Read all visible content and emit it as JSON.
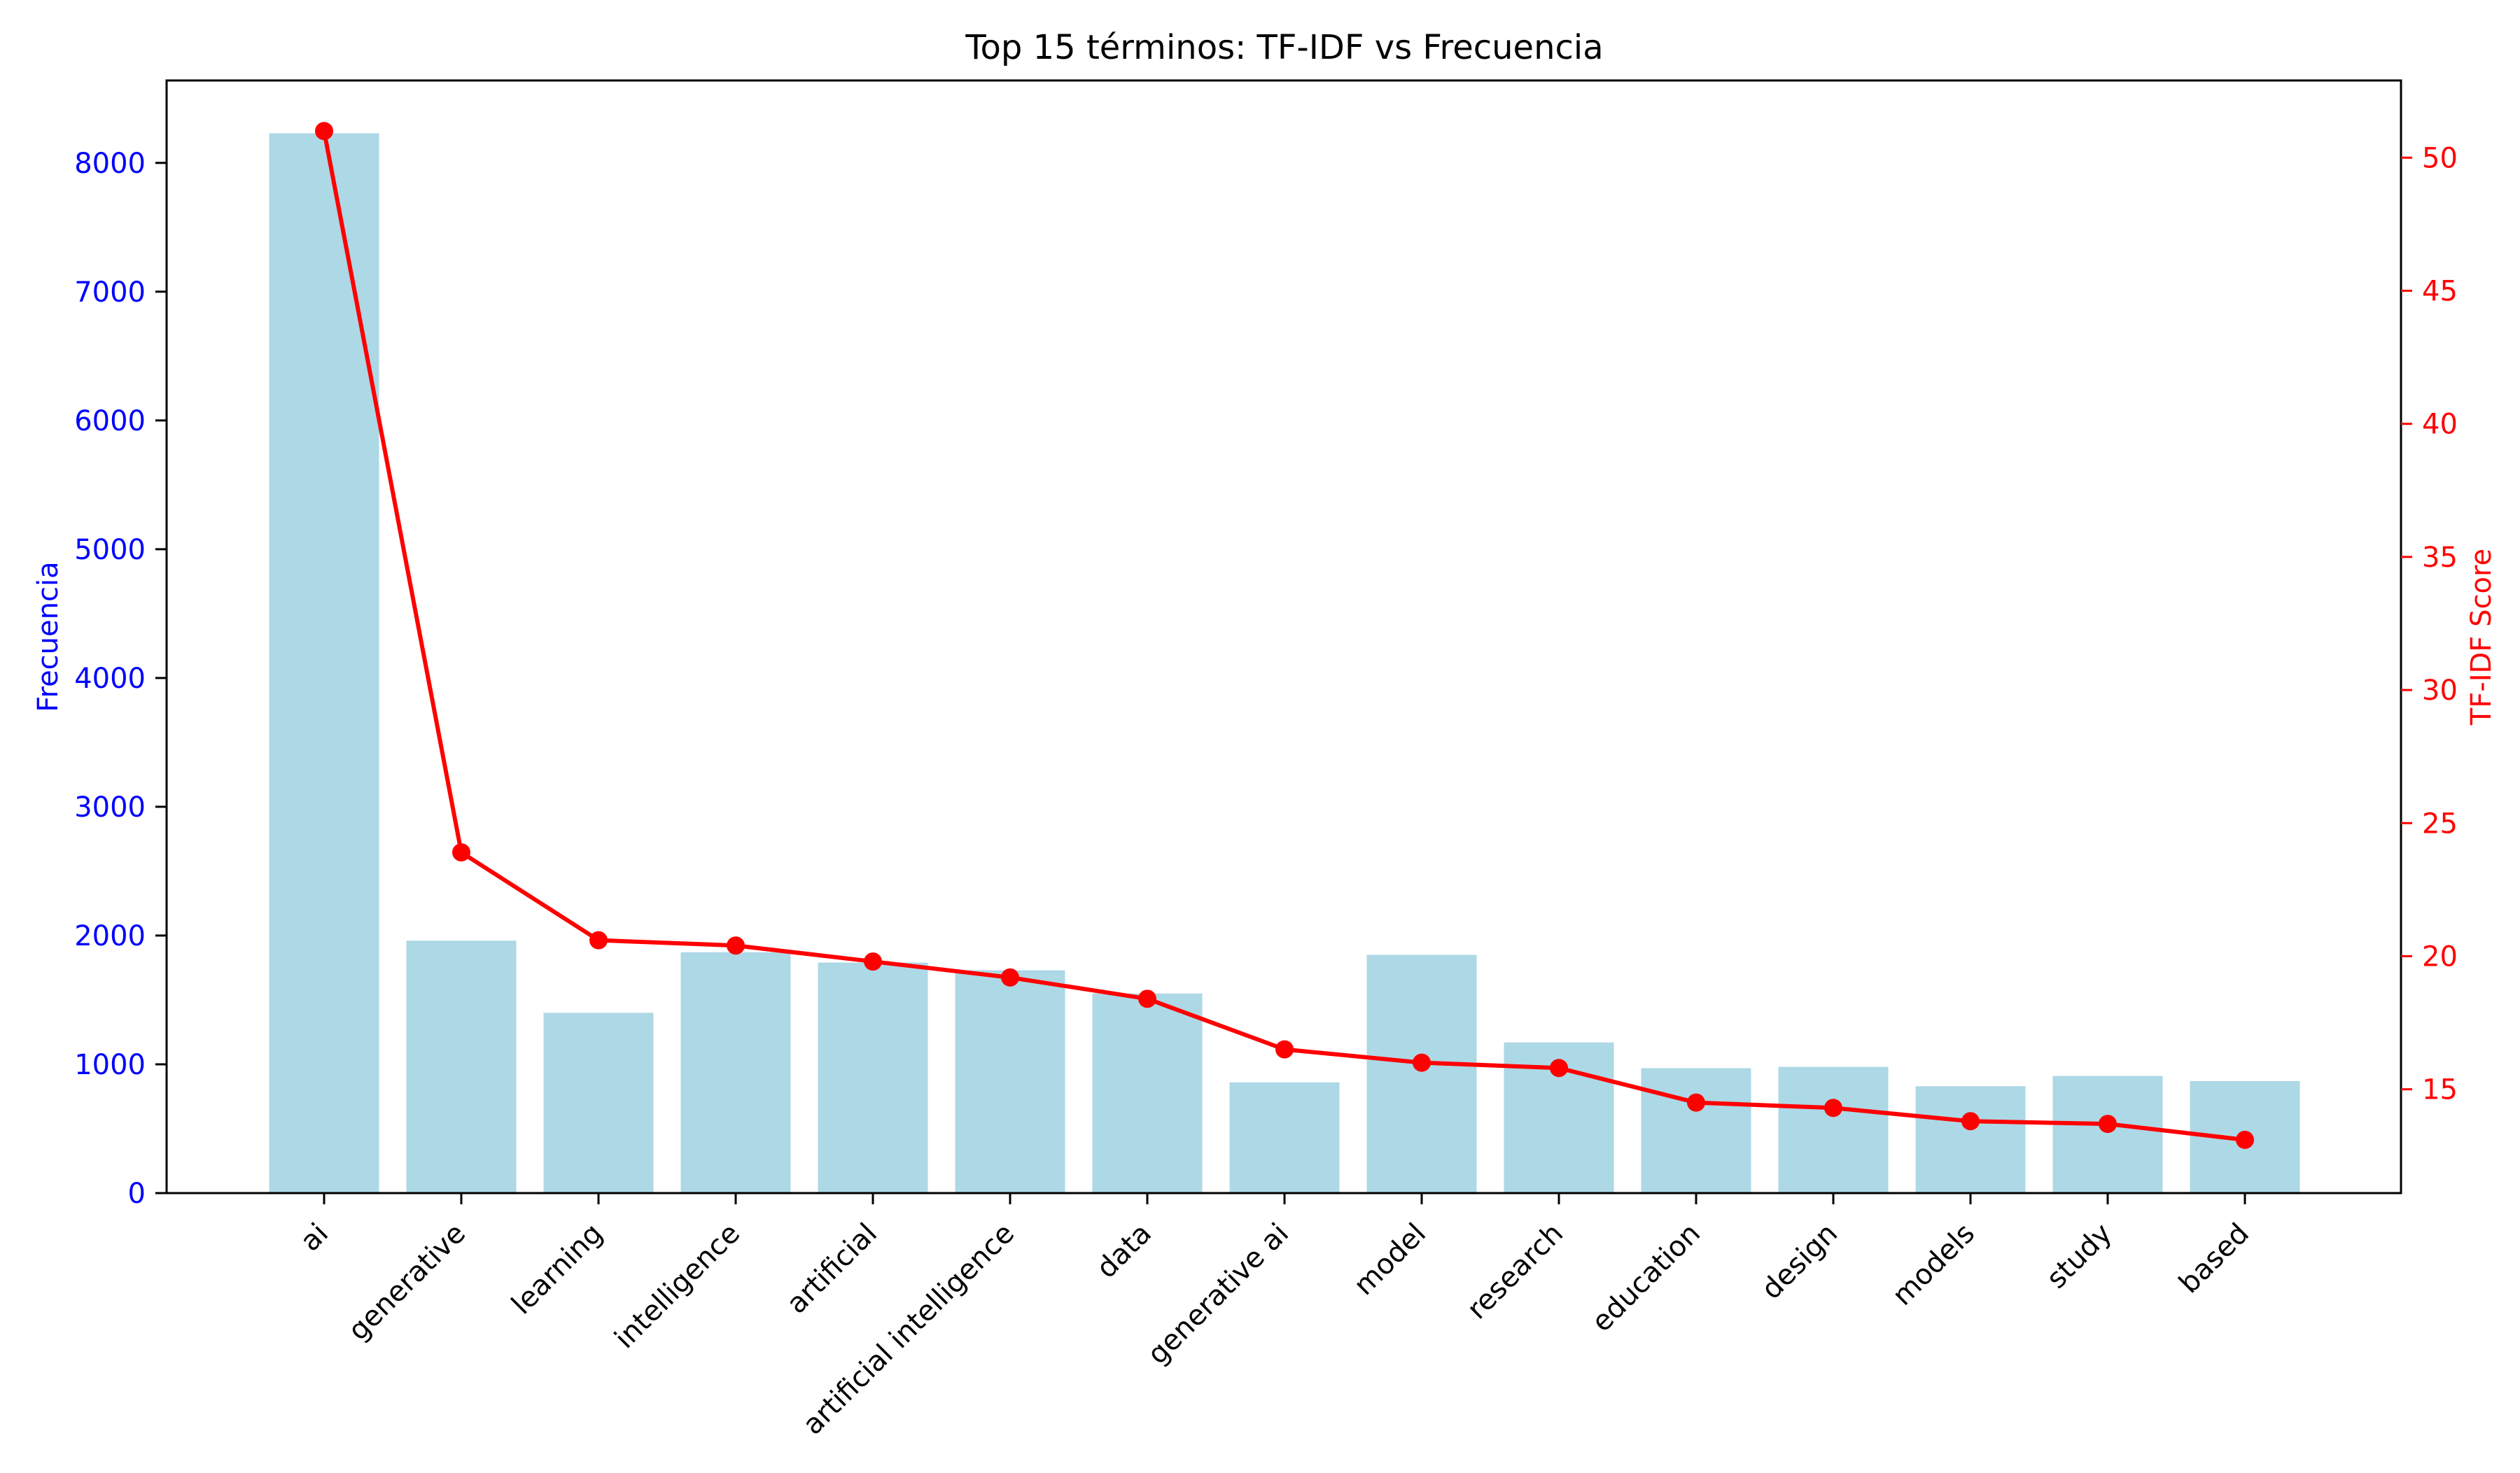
{
  "chart_data": {
    "type": "bar",
    "title": "Top 15 términos: TF-IDF vs Frecuencia",
    "categories": [
      "ai",
      "generative",
      "learning",
      "intelligence",
      "artificial",
      "artificial intelligence",
      "data",
      "generative ai",
      "model",
      "research",
      "education",
      "design",
      "models",
      "study",
      "based"
    ],
    "series": [
      {
        "type": "bar",
        "axis": "left",
        "values": [
          8230,
          1960,
          1400,
          1870,
          1790,
          1730,
          1550,
          860,
          1850,
          1170,
          970,
          980,
          830,
          910,
          870
        ],
        "color": "#add8e6"
      },
      {
        "type": "line",
        "axis": "right",
        "values": [
          51.0,
          23.9,
          20.6,
          20.4,
          19.8,
          19.2,
          18.4,
          16.5,
          16.0,
          15.8,
          14.5,
          14.3,
          13.8,
          13.7,
          13.1
        ],
        "color": "#ff0000",
        "marker": "circle"
      }
    ],
    "ylabel": "Frecuencia",
    "ylabel_color": "#0000ff",
    "ylim": [
      0,
      8640
    ],
    "yticks": [
      0,
      1000,
      2000,
      3000,
      4000,
      5000,
      6000,
      7000,
      8000
    ],
    "y2label": "TF-IDF Score",
    "y2label_color": "#ff0000",
    "y2lim": [
      11.1,
      52.9
    ],
    "y2ticks": [
      15,
      20,
      25,
      30,
      35,
      40,
      45,
      50
    ],
    "grid": false,
    "legend": "none"
  }
}
